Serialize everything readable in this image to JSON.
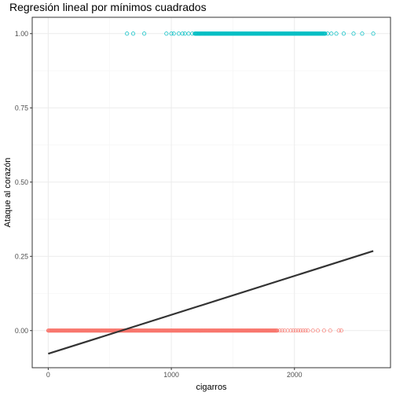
{
  "chart_data": {
    "type": "scatter",
    "title": "Regresión lineal por mínimos cuadrados",
    "xlabel": "cigarros",
    "ylabel": "Ataque al corazón",
    "xlim": [
      -130,
      2780
    ],
    "ylim": [
      -0.125,
      1.055
    ],
    "x_ticks": [
      0,
      1000,
      2000
    ],
    "x_tick_labels": [
      "0",
      "1000",
      "2000"
    ],
    "y_ticks": [
      0,
      0.25,
      0.5,
      0.75,
      1
    ],
    "y_tick_labels": [
      "0.00",
      "0.25",
      "0.50",
      "0.75",
      "1.00"
    ],
    "grid": true,
    "legend": "none",
    "series": [
      {
        "group": "0",
        "color": "#F8766D",
        "y": 0,
        "x_dense_range": [
          0,
          1860
        ],
        "x_sparse": [
          1880,
          1900,
          1920,
          1945,
          1970,
          1990,
          2010,
          2030,
          2050,
          2070,
          2090,
          2110,
          2150,
          2190,
          2240,
          2290,
          2360,
          2380
        ]
      },
      {
        "group": "1",
        "color": "#00BFC4",
        "y": 1,
        "x_sparse_low": [
          640,
          690,
          780,
          960,
          1000,
          1020,
          1060,
          1090,
          1110,
          1140,
          1170
        ],
        "x_dense_range": [
          1190,
          2250
        ],
        "x_sparse_high": [
          2270,
          2300,
          2340,
          2400,
          2480,
          2550,
          2640
        ]
      }
    ],
    "regression_line": {
      "color": "#333333",
      "x": [
        0,
        2640
      ],
      "y": [
        -0.078,
        0.268
      ]
    }
  }
}
